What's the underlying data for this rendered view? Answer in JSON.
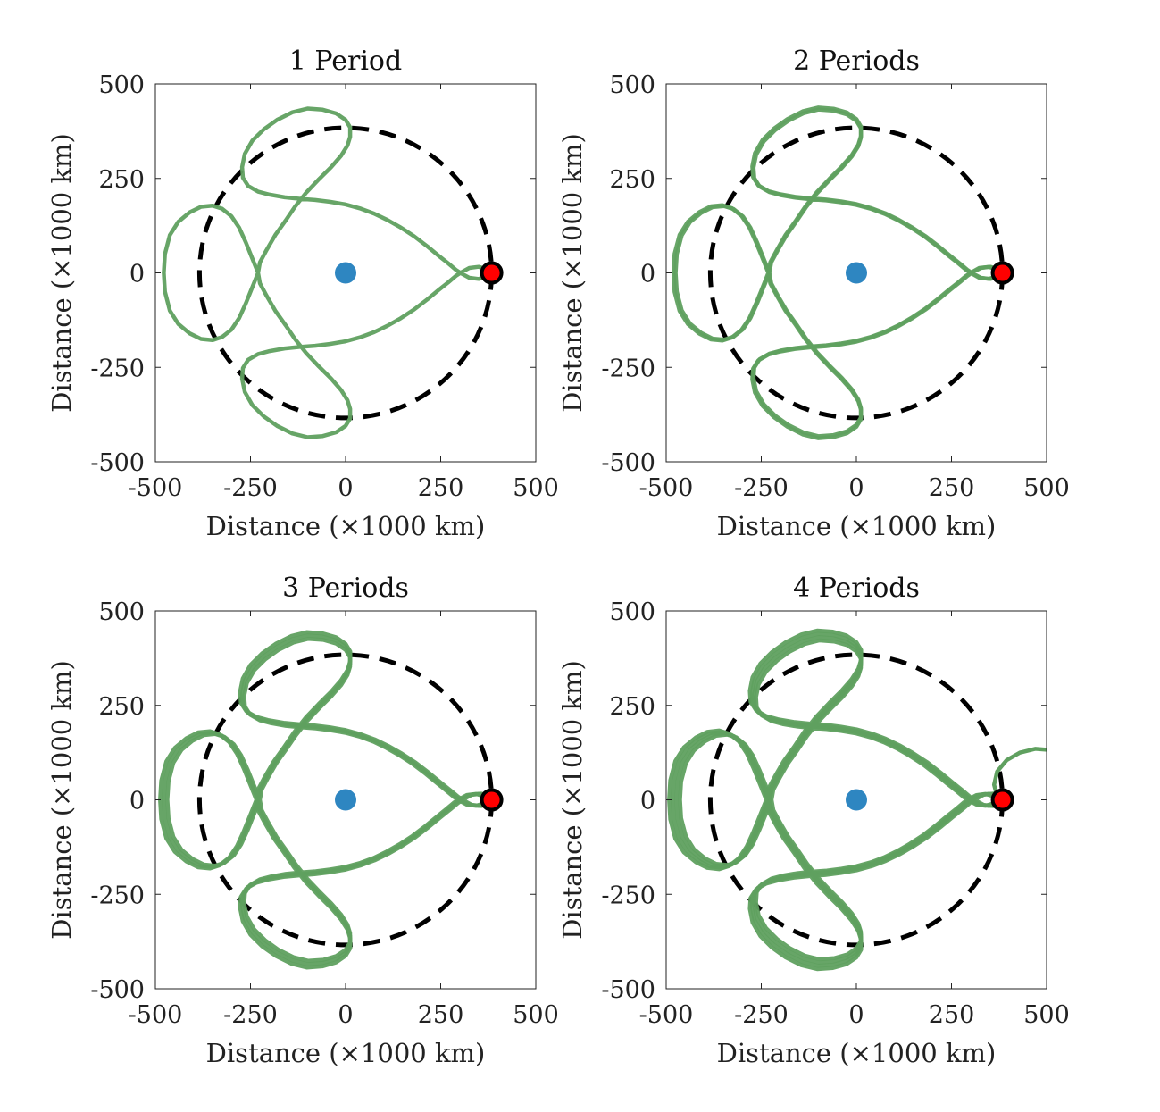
{
  "chart_data": [
    {
      "type": "line",
      "title": "1 Period",
      "xlabel": "Distance (×1000 km)",
      "ylabel": "Distance (×1000 km)",
      "xlim": [
        -500,
        500
      ],
      "ylim": [
        -500,
        500
      ],
      "xticks": [
        "-500",
        "-250",
        "0",
        "250",
        "500"
      ],
      "yticks": [
        "-500",
        "-250",
        "0",
        "250",
        "500"
      ],
      "periods": 1,
      "drift": 0.0,
      "escape": false,
      "grid": false,
      "trajectory_color": "#5fa05f",
      "orbit_radius": 384,
      "earth": {
        "x": 0,
        "y": 0,
        "color": "#2e86c1"
      },
      "moon": {
        "x": 384,
        "y": 0,
        "color": "#ff0000"
      }
    },
    {
      "type": "line",
      "title": "2 Periods",
      "xlabel": "Distance (×1000 km)",
      "ylabel": "Distance (×1000 km)",
      "xlim": [
        -500,
        500
      ],
      "ylim": [
        -500,
        500
      ],
      "xticks": [
        "-500",
        "-250",
        "0",
        "250",
        "500"
      ],
      "yticks": [
        "-500",
        "-250",
        "0",
        "250",
        "500"
      ],
      "periods": 2,
      "drift": 0.012,
      "escape": false,
      "grid": false,
      "trajectory_color": "#5fa05f",
      "orbit_radius": 384,
      "earth": {
        "x": 0,
        "y": 0,
        "color": "#2e86c1"
      },
      "moon": {
        "x": 384,
        "y": 0,
        "color": "#ff0000"
      }
    },
    {
      "type": "line",
      "title": "3 Periods",
      "xlabel": "Distance (×1000 km)",
      "ylabel": "Distance (×1000 km)",
      "xlim": [
        -500,
        500
      ],
      "ylim": [
        -500,
        500
      ],
      "xticks": [
        "-500",
        "-250",
        "0",
        "250",
        "500"
      ],
      "yticks": [
        "-500",
        "-250",
        "0",
        "250",
        "500"
      ],
      "periods": 3,
      "drift": 0.02,
      "escape": false,
      "grid": false,
      "trajectory_color": "#5fa05f",
      "orbit_radius": 384,
      "earth": {
        "x": 0,
        "y": 0,
        "color": "#2e86c1"
      },
      "moon": {
        "x": 384,
        "y": 0,
        "color": "#ff0000"
      }
    },
    {
      "type": "line",
      "title": "4 Periods",
      "xlabel": "Distance (×1000 km)",
      "ylabel": "Distance (×1000 km)",
      "xlim": [
        -500,
        500
      ],
      "ylim": [
        -500,
        500
      ],
      "xticks": [
        "-500",
        "-250",
        "0",
        "250",
        "500"
      ],
      "yticks": [
        "-500",
        "-250",
        "0",
        "250",
        "500"
      ],
      "periods": 4,
      "drift": 0.02,
      "escape": true,
      "grid": false,
      "trajectory_color": "#5fa05f",
      "orbit_radius": 384,
      "earth": {
        "x": 0,
        "y": 0,
        "color": "#2e86c1"
      },
      "moon": {
        "x": 384,
        "y": 0,
        "color": "#ff0000"
      }
    }
  ]
}
